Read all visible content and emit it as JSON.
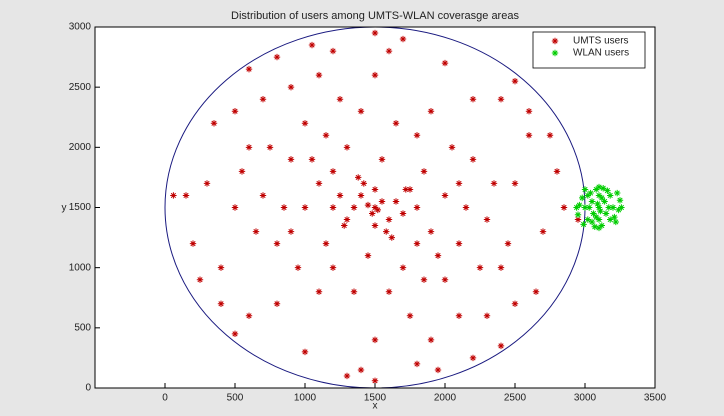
{
  "chart_data": {
    "type": "scatter",
    "title": "Distribution of users among UMTS-WLAN coverasge areas",
    "xlabel": "x",
    "ylabel": "y",
    "xlim": [
      -500,
      3500
    ],
    "ylim": [
      0,
      3000
    ],
    "xticks": [
      0,
      500,
      1000,
      1500,
      2000,
      2500,
      3000,
      3500
    ],
    "yticks": [
      0,
      500,
      1000,
      1500,
      2000,
      2500,
      3000
    ],
    "legend": "upper right",
    "boundary": {
      "center": [
        1500,
        1500
      ],
      "radius": 1500,
      "color": "#1a1a80"
    },
    "series": [
      {
        "name": "UMTS users",
        "color": "#c00000",
        "x": [
          1500,
          1450,
          1520,
          1480,
          1550,
          1400,
          1600,
          1350,
          1650,
          1500,
          1500,
          1300,
          1700,
          1250,
          1750,
          1420,
          1580,
          1200,
          1800,
          1100,
          1900,
          1000,
          2000,
          1150,
          1850,
          900,
          2100,
          1300,
          1700,
          1200,
          1800,
          1400,
          1600,
          800,
          2200,
          700,
          2300,
          1000,
          2000,
          600,
          2400,
          1100,
          1900,
          500,
          2500,
          1500,
          1500,
          800,
          2200,
          900,
          2100,
          400,
          2600,
          700,
          2300,
          300,
          2700,
          1200,
          1800,
          1000,
          2000,
          200,
          2800,
          600,
          2400,
          500,
          2500,
          1300,
          1700,
          150,
          2850,
          1100,
          1900,
          400,
          2600,
          350,
          2650,
          800,
          2200,
          1600,
          1400,
          950,
          2050,
          1250,
          1750,
          650,
          2350,
          1050,
          1950,
          750,
          2250,
          1350,
          1650,
          850,
          2150,
          1150,
          1850,
          550,
          2450,
          1450,
          1550,
          1280,
          1720,
          1380,
          1620,
          60,
          2950,
          1050,
          1950,
          250,
          2750,
          500,
          2500,
          600,
          2400,
          1500,
          1500,
          900,
          2100,
          1200,
          1800
        ],
        "y": [
          1500,
          1520,
          1480,
          1450,
          1550,
          1600,
          1400,
          1500,
          1550,
          1650,
          1350,
          1400,
          1450,
          1600,
          1650,
          1700,
          1300,
          1500,
          1500,
          1700,
          1300,
          1500,
          1600,
          1200,
          1800,
          1900,
          1200,
          2000,
          1000,
          1000,
          2100,
          2300,
          800,
          1200,
          1900,
          1600,
          1400,
          2200,
          900,
          2000,
          1000,
          800,
          2300,
          1500,
          1700,
          2600,
          400,
          700,
          2400,
          2500,
          600,
          1000,
          2100,
          2400,
          600,
          1700,
          1300,
          2800,
          200,
          300,
          2700,
          1200,
          1800,
          600,
          2400,
          2300,
          700,
          100,
          2900,
          1600,
          1500,
          2600,
          400,
          700,
          2300,
          2200,
          800,
          2750,
          250,
          2800,
          150,
          1000,
          2000,
          2400,
          600,
          1300,
          1700,
          1900,
          1100,
          2000,
          1000,
          800,
          2200,
          1500,
          1500,
          2100,
          900,
          1800,
          1200,
          1100,
          1900,
          1350,
          1650,
          1750,
          1250,
          1600,
          1400,
          2850,
          150,
          900,
          2100,
          450,
          2550,
          2650,
          350,
          2950,
          60,
          1300,
          1700,
          1800,
          1200
        ]
      },
      {
        "name": "WLAN users",
        "color": "#00cc00",
        "x": [
          3100,
          3050,
          3150,
          3000,
          3200,
          3100,
          3100,
          3020,
          3180,
          3020,
          3180,
          2960,
          3240,
          3080,
          3120,
          3060,
          3140,
          3000,
          3220,
          2950,
          3250,
          3130,
          3070,
          3170,
          3030,
          3110,
          3090,
          2980,
          3210,
          3050,
          3160,
          3040,
          3230,
          2990,
          3120,
          3080,
          3260,
          2940,
          3100,
          3100
        ],
        "y": [
          1500,
          1550,
          1450,
          1500,
          1500,
          1600,
          1400,
          1600,
          1600,
          1400,
          1400,
          1520,
          1480,
          1650,
          1350,
          1450,
          1550,
          1650,
          1380,
          1440,
          1560,
          1660,
          1340,
          1500,
          1500,
          1470,
          1530,
          1580,
          1420,
          1380,
          1640,
          1620,
          1620,
          1360,
          1580,
          1420,
          1500,
          1500,
          1670,
          1330
        ]
      }
    ]
  }
}
